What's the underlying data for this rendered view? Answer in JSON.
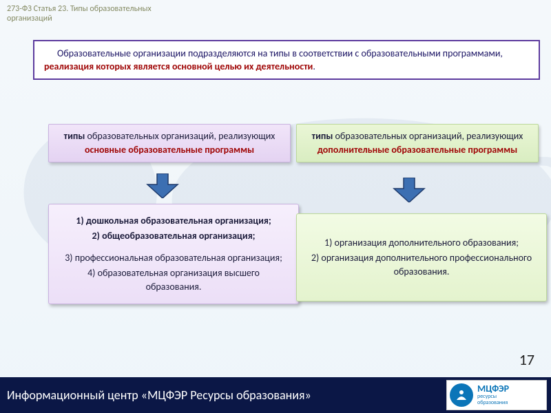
{
  "colors": {
    "accent_purple": "#5c3a9e",
    "accent_red": "#a00808",
    "footer_bg": "#0b1746",
    "logo_blue": "#0b75b8",
    "arrow_fill": "#3c6fb2",
    "arrow_stroke": "#1e3a6b",
    "left_box_bg": "#e4d3f2",
    "right_box_bg": "#d9edc1"
  },
  "top_title_1": "273-ФЗ     Статья 23.  Типы  образовательных",
  "top_title_2": "организаций",
  "intro_plain": "Образовательные организации подразделяются на типы в соответствии с образовательными программами, ",
  "intro_emph": "реализация которых является основной целью их деятельности",
  "intro_tail": ".",
  "type_left_lead": "типы образовательных организаций, реализующих",
  "type_left_lead_bold": "типы",
  "type_left_main": "основные образовательные программы",
  "type_right_lead": "типы образовательных организаций, реализующих",
  "type_right_lead_bold": "типы",
  "type_right_main": "дополнительные образовательные программы",
  "list_left": {
    "items": [
      {
        "text": "1) дошкольная образовательная организация;",
        "bold": true
      },
      {
        "text": "2) общеобразовательная организация;",
        "bold": true
      },
      {
        "text": "3) профессиональная образовательная организация;",
        "bold": false
      },
      {
        "text": "4) образовательная организация высшего образования.",
        "bold": false
      }
    ]
  },
  "list_right": {
    "items": [
      {
        "text": "1) организация дополнительного образования;",
        "bold": false
      },
      {
        "text": "2) организация дополнительного профессионального образования.",
        "bold": false
      }
    ]
  },
  "page_number": "17",
  "footer_text": "Информационный центр «МЦФЭР Ресурсы образования»",
  "logo_brand": "МЦФЭР",
  "logo_sub1": "ресурсы",
  "logo_sub2": "образования"
}
